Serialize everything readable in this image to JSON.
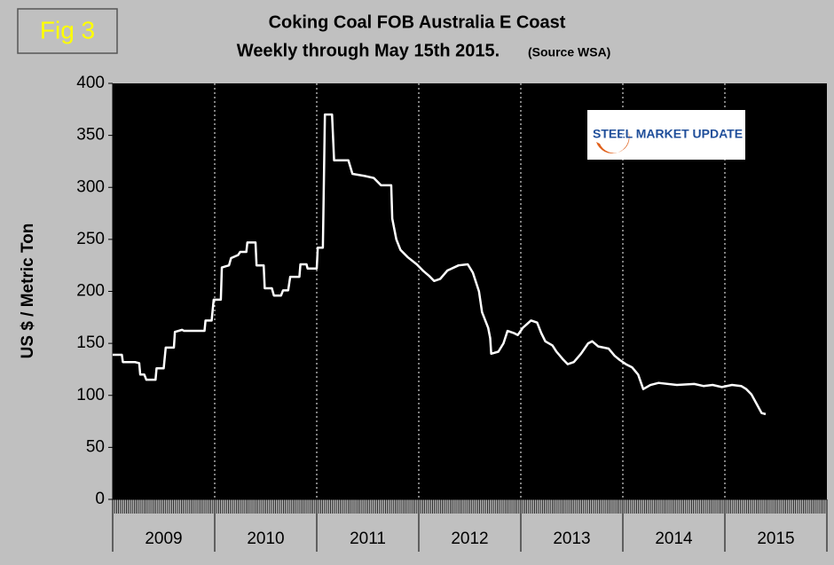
{
  "chart_data": {
    "type": "line",
    "figure_label": "Fig 3",
    "title": "Coking Coal FOB Australia E Coast",
    "subtitle": "Weekly through May 15th 2015.",
    "source": "(Source WSA)",
    "logo": "STEEL MARKET UPDATE",
    "ylabel": "US $ / Metric Ton",
    "categories": [
      "2009",
      "2010",
      "2011",
      "2012",
      "2013",
      "2014",
      "2015"
    ],
    "xlim": [
      2009,
      2016
    ],
    "xticks": [
      2009,
      2010,
      2011,
      2012,
      2013,
      2014,
      2015,
      2016
    ],
    "ylim": [
      0,
      400
    ],
    "yticks": [
      0,
      50,
      100,
      150,
      200,
      250,
      300,
      350,
      400
    ],
    "grid": true,
    "series": [
      {
        "name": "Coking Coal",
        "color": "#ffffff",
        "x": [
          2009.0,
          2009.09,
          2009.1,
          2009.22,
          2009.26,
          2009.27,
          2009.31,
          2009.33,
          2009.42,
          2009.43,
          2009.5,
          2009.52,
          2009.6,
          2009.61,
          2009.68,
          2009.7,
          2009.9,
          2009.91,
          2009.97,
          2009.99,
          2010.06,
          2010.07,
          2010.14,
          2010.16,
          2010.23,
          2010.25,
          2010.31,
          2010.32,
          2010.4,
          2010.41,
          2010.48,
          2010.49,
          2010.56,
          2010.58,
          2010.65,
          2010.67,
          2010.72,
          2010.74,
          2010.83,
          2010.84,
          2010.9,
          2010.91,
          2011.0,
          2011.01,
          2011.06,
          2011.08,
          2011.15,
          2011.17,
          2011.31,
          2011.35,
          2011.47,
          2011.56,
          2011.6,
          2011.63,
          2011.73,
          2011.74,
          2011.78,
          2011.82,
          2011.89,
          2011.98,
          2012.04,
          2012.1,
          2012.15,
          2012.21,
          2012.28,
          2012.39,
          2012.48,
          2012.53,
          2012.59,
          2012.62,
          2012.68,
          2012.7,
          2012.71,
          2012.78,
          2012.83,
          2012.87,
          2012.93,
          2012.97,
          2013.02,
          2013.1,
          2013.16,
          2013.2,
          2013.24,
          2013.31,
          2013.35,
          2013.41,
          2013.46,
          2013.52,
          2013.59,
          2013.66,
          2013.7,
          2013.76,
          2013.86,
          2013.92,
          2013.97,
          2014.03,
          2014.09,
          2014.15,
          2014.2,
          2014.27,
          2014.35,
          2014.53,
          2014.7,
          2014.79,
          2014.88,
          2014.97,
          2015.07,
          2015.16,
          2015.21,
          2015.26,
          2015.31,
          2015.36,
          2015.4
        ],
        "values": [
          139,
          139,
          132,
          132,
          131,
          120,
          120,
          115,
          115,
          126,
          126,
          146,
          146,
          161,
          163,
          162,
          162,
          172,
          172,
          192,
          192,
          223,
          225,
          232,
          235,
          238,
          238,
          247,
          247,
          225,
          225,
          203,
          203,
          196,
          196,
          201,
          201,
          214,
          214,
          226,
          226,
          222,
          222,
          242,
          242,
          370,
          370,
          326,
          326,
          313,
          311,
          309,
          305,
          302,
          302,
          270,
          250,
          240,
          233,
          226,
          220,
          215,
          210,
          212,
          220,
          225,
          226,
          218,
          200,
          180,
          165,
          155,
          140,
          142,
          150,
          162,
          160,
          158,
          165,
          172,
          170,
          160,
          152,
          148,
          142,
          135,
          130,
          132,
          140,
          150,
          152,
          147,
          145,
          138,
          134,
          130,
          127,
          120,
          106,
          110,
          112,
          110,
          111,
          109,
          110,
          108,
          110,
          109,
          106,
          101,
          92,
          83,
          82
        ]
      }
    ]
  }
}
